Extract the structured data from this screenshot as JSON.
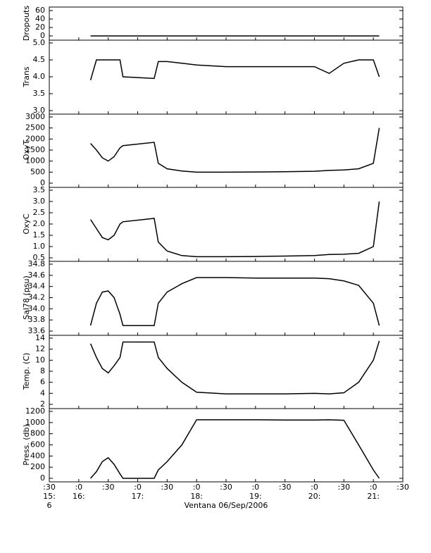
{
  "xaxis": {
    "xlim": [
      15.5,
      21.5
    ],
    "xticks": [
      {
        "value": 15.5,
        "label": ":30"
      },
      {
        "value": 16,
        "label": ":0"
      },
      {
        "value": 16.5,
        "label": ":30"
      },
      {
        "value": 17,
        "label": ":0"
      },
      {
        "value": 17.5,
        "label": ":30"
      },
      {
        "value": 18,
        "label": ":0"
      },
      {
        "value": 18.5,
        "label": ":30"
      },
      {
        "value": 19,
        "label": ":0"
      },
      {
        "value": 19.5,
        "label": ":30"
      },
      {
        "value": 20,
        "label": ":0"
      },
      {
        "value": 20.5,
        "label": ":30"
      },
      {
        "value": 21,
        "label": ":0"
      },
      {
        "value": 21.5,
        "label": ":30"
      }
    ],
    "hour_labels": [
      {
        "value": 15.5,
        "label": "15:"
      },
      {
        "value": 16,
        "label": "16:"
      },
      {
        "value": 17,
        "label": "17:"
      },
      {
        "value": 18,
        "label": "18:"
      },
      {
        "value": 19,
        "label": "19:"
      },
      {
        "value": 20,
        "label": "20:"
      },
      {
        "value": 21,
        "label": "21:"
      }
    ],
    "day_label": {
      "value": 15.5,
      "label": "6"
    },
    "xlabel": "Ventana 06/Sep/2006"
  },
  "chart_data": [
    {
      "type": "line",
      "ylabel": "Dropouts",
      "ylim": [
        0,
        60
      ],
      "yticks": [
        0,
        20,
        40,
        60
      ],
      "color": "#000000",
      "x": [
        16.2,
        16.3,
        16.4,
        16.5,
        16.6,
        16.7,
        16.75,
        17.28,
        17.35,
        17.5,
        17.75,
        18,
        18.5,
        19,
        19.5,
        20,
        20.25,
        20.5,
        20.75,
        21,
        21.1
      ],
      "values": [
        0,
        0,
        0,
        0,
        0,
        0,
        0,
        0,
        0,
        0,
        0,
        0,
        0,
        0,
        0,
        0,
        0,
        0,
        0,
        0,
        0
      ]
    },
    {
      "type": "line",
      "ylabel": "Trans",
      "ylim": [
        3,
        5
      ],
      "yticks": [
        {
          "value": 3,
          "label": "3.0"
        },
        3.5,
        {
          "value": 4,
          "label": "4.0"
        },
        4.5,
        {
          "value": 5,
          "label": "5.0"
        }
      ],
      "color": "#000000",
      "x": [
        16.2,
        16.3,
        16.4,
        16.5,
        16.6,
        16.7,
        16.75,
        17.28,
        17.35,
        17.5,
        17.75,
        18,
        18.5,
        19,
        19.5,
        20,
        20.25,
        20.5,
        20.75,
        21,
        21.1
      ],
      "values": [
        3.9,
        4.5,
        4.5,
        4.5,
        4.5,
        4.5,
        4.0,
        3.95,
        4.45,
        4.45,
        4.4,
        4.35,
        4.3,
        4.3,
        4.3,
        4.3,
        4.1,
        4.4,
        4.5,
        4.5,
        4.0
      ]
    },
    {
      "type": "line",
      "ylabel": "OxyT",
      "ylim": [
        0,
        3000
      ],
      "yticks": [
        0,
        500,
        1000,
        1500,
        2000,
        2500,
        3000
      ],
      "color": "#000000",
      "x": [
        16.2,
        16.3,
        16.4,
        16.5,
        16.6,
        16.7,
        16.75,
        17.28,
        17.35,
        17.5,
        17.75,
        18,
        18.5,
        19,
        19.5,
        20,
        20.25,
        20.5,
        20.75,
        21,
        21.1
      ],
      "values": [
        1800,
        1500,
        1150,
        1000,
        1200,
        1600,
        1700,
        1850,
        900,
        650,
        550,
        500,
        500,
        505,
        520,
        540,
        580,
        600,
        650,
        900,
        2500
      ]
    },
    {
      "type": "line",
      "ylabel": "OxyC",
      "ylim": [
        0.5,
        3.5
      ],
      "yticks": [
        0.5,
        {
          "value": 1,
          "label": "1.0"
        },
        1.5,
        {
          "value": 2,
          "label": "2.0"
        },
        2.5,
        {
          "value": 3,
          "label": "3.0"
        },
        3.5
      ],
      "color": "#000000",
      "x": [
        16.2,
        16.3,
        16.4,
        16.5,
        16.6,
        16.7,
        16.75,
        17.28,
        17.35,
        17.5,
        17.75,
        18,
        18.5,
        19,
        19.5,
        20,
        20.25,
        20.5,
        20.75,
        21,
        21.1
      ],
      "values": [
        2.2,
        1.8,
        1.4,
        1.3,
        1.5,
        2.0,
        2.1,
        2.25,
        1.2,
        0.8,
        0.6,
        0.55,
        0.55,
        0.56,
        0.58,
        0.6,
        0.65,
        0.66,
        0.7,
        1.0,
        3.0
      ]
    },
    {
      "type": "line",
      "ylabel": "Sal78 (psu)",
      "ylim": [
        33.6,
        34.8
      ],
      "yticks": [
        33.6,
        33.8,
        {
          "value": 34,
          "label": "34.0"
        },
        34.2,
        34.4,
        34.6,
        34.8
      ],
      "color": "#000000",
      "x": [
        16.2,
        16.3,
        16.4,
        16.5,
        16.6,
        16.7,
        16.75,
        17.28,
        17.35,
        17.5,
        17.75,
        18,
        18.5,
        19,
        19.5,
        20,
        20.25,
        20.5,
        20.75,
        21,
        21.1
      ],
      "values": [
        33.7,
        34.1,
        34.3,
        34.32,
        34.2,
        33.9,
        33.7,
        33.7,
        34.1,
        34.3,
        34.45,
        34.56,
        34.56,
        34.55,
        34.55,
        34.55,
        34.54,
        34.5,
        34.42,
        34.1,
        33.7
      ]
    },
    {
      "type": "line",
      "ylabel": "Temp. (C)",
      "ylim": [
        2,
        14
      ],
      "yticks": [
        2,
        4,
        6,
        8,
        10,
        12,
        14
      ],
      "color": "#000000",
      "x": [
        16.2,
        16.3,
        16.4,
        16.5,
        16.6,
        16.7,
        16.75,
        17.28,
        17.35,
        17.5,
        17.75,
        18,
        18.5,
        19,
        19.5,
        20,
        20.25,
        20.5,
        20.75,
        21,
        21.1
      ],
      "values": [
        13,
        10.5,
        8.5,
        7.7,
        9,
        10.5,
        13.3,
        13.3,
        10.5,
        8.5,
        6,
        4.2,
        3.9,
        3.9,
        3.9,
        4.0,
        3.9,
        4.1,
        6,
        10,
        13.5
      ]
    },
    {
      "type": "line",
      "ylabel": "Press. (db)",
      "ylim": [
        0,
        1200
      ],
      "yticks": [
        0,
        200,
        400,
        600,
        800,
        1000,
        1200
      ],
      "color": "#000000",
      "x": [
        16.2,
        16.3,
        16.4,
        16.5,
        16.6,
        16.7,
        16.75,
        17.28,
        17.35,
        17.5,
        17.75,
        18,
        18.5,
        19,
        19.5,
        20,
        20.25,
        20.5,
        20.75,
        21,
        21.1
      ],
      "values": [
        0,
        120,
        300,
        370,
        250,
        80,
        0,
        0,
        150,
        300,
        600,
        1050,
        1050,
        1050,
        1045,
        1045,
        1050,
        1040,
        600,
        150,
        0
      ]
    }
  ]
}
